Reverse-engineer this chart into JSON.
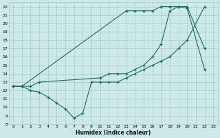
{
  "xlabel": "Humidex (Indice chaleur)",
  "bg_color": "#cce8e8",
  "grid_color": "#aacccc",
  "line_color": "#1a6b5a",
  "xlim": [
    -0.5,
    23.5
  ],
  "ylim": [
    8,
    22.5
  ],
  "xticks": [
    0,
    1,
    2,
    3,
    4,
    5,
    6,
    7,
    8,
    9,
    10,
    11,
    12,
    13,
    14,
    15,
    16,
    17,
    18,
    19,
    20,
    21,
    22,
    23
  ],
  "yticks": [
    8,
    9,
    10,
    11,
    12,
    13,
    14,
    15,
    16,
    17,
    18,
    19,
    20,
    21,
    22
  ],
  "line1_x": [
    0,
    1,
    2,
    3,
    4,
    5,
    6,
    7,
    8,
    9,
    10,
    11,
    12,
    13,
    14,
    15,
    16,
    17,
    18,
    19,
    20,
    22
  ],
  "line1_y": [
    12.5,
    12.5,
    12.0,
    11.8,
    11.2,
    10.5,
    9.8,
    8.7,
    9.3,
    13.0,
    13.0,
    13.0,
    13.0,
    13.5,
    14.0,
    14.5,
    15.0,
    15.5,
    16.0,
    17.0,
    18.0,
    22.0
  ],
  "line2_x": [
    0,
    1,
    2,
    3,
    10,
    11,
    12,
    13,
    14,
    15,
    16,
    17,
    18,
    19,
    20,
    22
  ],
  "line2_y": [
    12.5,
    12.5,
    12.5,
    13.0,
    13.5,
    14.0,
    14.0,
    14.0,
    14.5,
    15.0,
    16.0,
    17.5,
    21.5,
    22.0,
    22.0,
    17.0
  ],
  "line3_x": [
    0,
    1,
    13,
    14,
    15,
    16,
    17,
    18,
    19,
    20,
    22
  ],
  "line3_y": [
    12.5,
    12.5,
    21.5,
    21.5,
    21.5,
    21.5,
    22.0,
    22.0,
    22.0,
    21.8,
    14.5
  ]
}
